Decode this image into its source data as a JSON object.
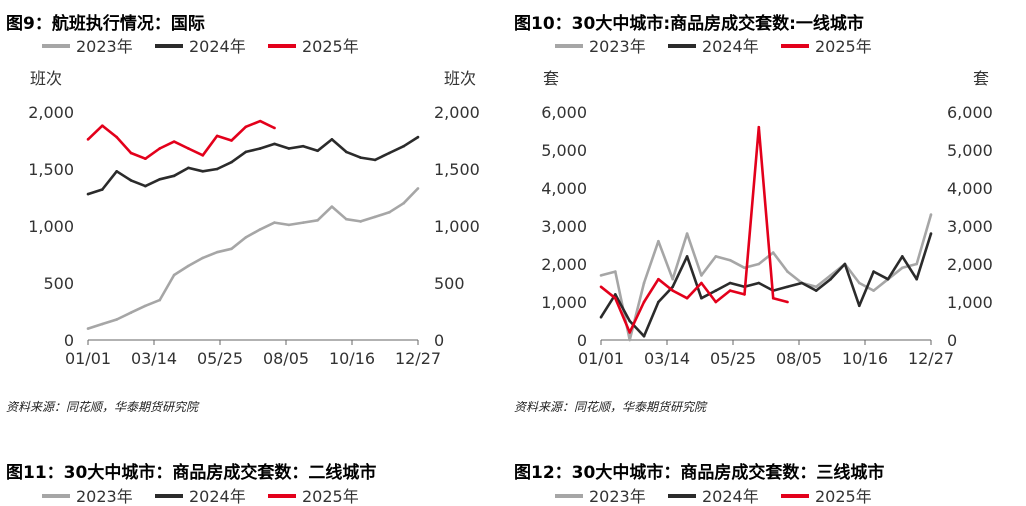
{
  "colors": {
    "y2023": "#a6a6a6",
    "y2024": "#2b2b2b",
    "y2025": "#e3001b"
  },
  "chart_data": [
    {
      "type": "line",
      "title": "图9：航班执行情况：国际",
      "ylabel_left": "班次",
      "ylabel_right": "班次",
      "yticks": [
        "0",
        "500",
        "1,000",
        "1,500",
        "2,000"
      ],
      "ylim": [
        0,
        2000
      ],
      "xticks": [
        "01/01",
        "03/14",
        "05/25",
        "08/05",
        "10/16",
        "12/27"
      ],
      "source": "资料来源：同花顺，华泰期货研究院",
      "x": [
        "01/01",
        "01/15",
        "02/01",
        "02/15",
        "03/01",
        "03/14",
        "04/01",
        "04/15",
        "05/01",
        "05/25",
        "06/15",
        "07/01",
        "07/15",
        "08/05",
        "08/20",
        "09/05",
        "09/20",
        "10/01",
        "10/16",
        "11/01",
        "11/15",
        "12/01",
        "12/15",
        "12/27"
      ],
      "series": [
        {
          "name": "2023年",
          "values": [
            100,
            140,
            180,
            240,
            300,
            350,
            570,
            650,
            720,
            770,
            800,
            900,
            970,
            1030,
            1010,
            1030,
            1050,
            1170,
            1060,
            1040,
            1080,
            1120,
            1200,
            1330
          ]
        },
        {
          "name": "2024年",
          "values": [
            1280,
            1320,
            1480,
            1400,
            1350,
            1410,
            1440,
            1510,
            1480,
            1500,
            1560,
            1650,
            1680,
            1720,
            1680,
            1700,
            1660,
            1760,
            1650,
            1600,
            1580,
            1640,
            1700,
            1780
          ]
        },
        {
          "name": "2025年",
          "values": [
            1760,
            1880,
            1780,
            1640,
            1590,
            1680,
            1740,
            1680,
            1620,
            1790,
            1750,
            1870,
            1920,
            1860,
            null,
            null,
            null,
            null,
            null,
            null,
            null,
            null,
            null,
            null
          ]
        }
      ]
    },
    {
      "type": "line",
      "title": "图10：30大中城市:商品房成交套数:一线城市",
      "ylabel_left": "套",
      "ylabel_right": "套",
      "yticks": [
        "0",
        "1,000",
        "2,000",
        "3,000",
        "4,000",
        "5,000",
        "6,000"
      ],
      "ylim": [
        0,
        6000
      ],
      "xticks": [
        "01/01",
        "03/14",
        "05/25",
        "08/05",
        "10/16",
        "12/27"
      ],
      "source": "资料来源：同花顺，华泰期货研究院",
      "x": [
        "01/01",
        "01/15",
        "02/01",
        "02/15",
        "03/01",
        "03/14",
        "04/01",
        "04/15",
        "05/01",
        "05/25",
        "06/15",
        "07/01",
        "07/15",
        "08/05",
        "08/20",
        "09/05",
        "09/20",
        "10/01",
        "10/16",
        "11/01",
        "11/15",
        "12/01",
        "12/15",
        "12/27"
      ],
      "series": [
        {
          "name": "2023年",
          "values": [
            1700,
            1800,
            0,
            1500,
            2600,
            1600,
            2800,
            1700,
            2200,
            2100,
            1900,
            2000,
            2300,
            1800,
            1500,
            1400,
            1700,
            2000,
            1500,
            1300,
            1600,
            1900,
            2000,
            3300
          ]
        },
        {
          "name": "2024年",
          "values": [
            600,
            1200,
            500,
            100,
            1000,
            1400,
            2200,
            1100,
            1300,
            1500,
            1400,
            1500,
            1300,
            1400,
            1500,
            1300,
            1600,
            2000,
            900,
            1800,
            1600,
            2200,
            1600,
            2800
          ]
        },
        {
          "name": "2025年",
          "values": [
            1400,
            1100,
            200,
            1000,
            1600,
            1300,
            1100,
            1500,
            1000,
            1300,
            1200,
            5600,
            1100,
            1000,
            null,
            null,
            null,
            null,
            null,
            null,
            null,
            null,
            null,
            null
          ]
        }
      ]
    }
  ],
  "lower": {
    "title_left": "图11：30大中城市：商品房成交套数：二线城市",
    "title_right": "图12：30大中城市：商品房成交套数：三线城市",
    "legend": [
      "2023年",
      "2024年",
      "2025年"
    ]
  }
}
